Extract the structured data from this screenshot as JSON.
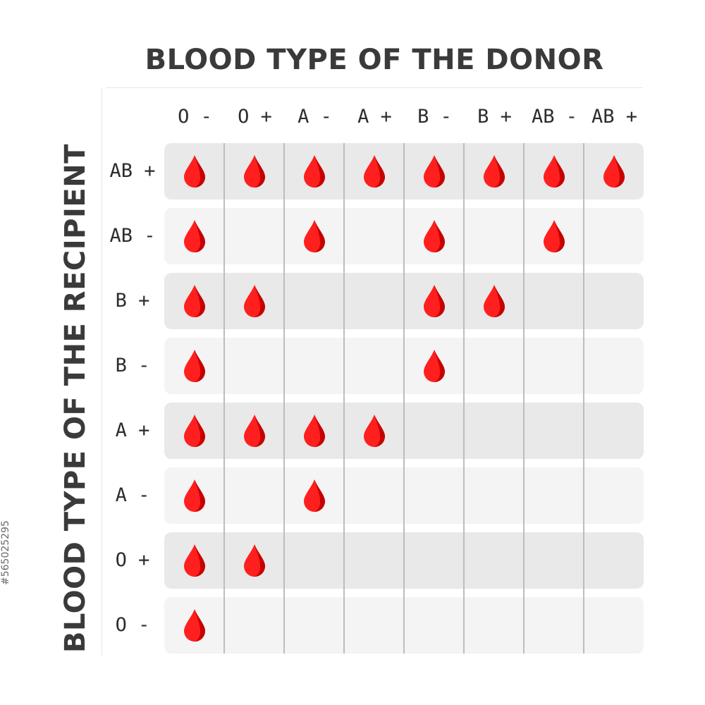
{
  "donor_title": "BLOOD TYPE OF THE DONOR",
  "recipient_title": "BLOOD TYPE OF THE RECIPIENT",
  "side_id": "#565025295",
  "donor_types": [
    "O -",
    "O +",
    "A -",
    "A +",
    "B -",
    "B +",
    "AB -",
    "AB +"
  ],
  "recipient_types": [
    "AB +",
    "AB -",
    "B +",
    "B -",
    "A +",
    "A -",
    "O +",
    "O -"
  ],
  "compatibility": [
    [
      1,
      1,
      1,
      1,
      1,
      1,
      1,
      1
    ],
    [
      1,
      0,
      1,
      0,
      1,
      0,
      1,
      0
    ],
    [
      1,
      1,
      0,
      0,
      1,
      1,
      0,
      0
    ],
    [
      1,
      0,
      0,
      0,
      1,
      0,
      0,
      0
    ],
    [
      1,
      1,
      1,
      1,
      0,
      0,
      0,
      0
    ],
    [
      1,
      0,
      1,
      0,
      0,
      0,
      0,
      0
    ],
    [
      1,
      1,
      0,
      0,
      0,
      0,
      0,
      0
    ],
    [
      1,
      0,
      0,
      0,
      0,
      0,
      0,
      0
    ]
  ],
  "colors": {
    "drop_light": "#ff1f1f",
    "drop_dark": "#c60000",
    "band_dark": "#e9e9e9",
    "band_light": "#f4f4f4",
    "text": "#3a3a3a"
  },
  "icon": "blood-drop-icon"
}
